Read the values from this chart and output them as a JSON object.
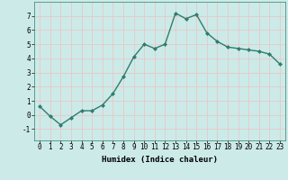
{
  "x": [
    0,
    1,
    2,
    3,
    4,
    5,
    6,
    7,
    8,
    9,
    10,
    11,
    12,
    13,
    14,
    15,
    16,
    17,
    18,
    19,
    20,
    21,
    22,
    23
  ],
  "y": [
    0.6,
    -0.1,
    -0.7,
    -0.2,
    0.3,
    0.3,
    0.7,
    1.5,
    2.7,
    4.1,
    5.0,
    4.7,
    5.0,
    7.2,
    6.8,
    7.1,
    5.8,
    5.2,
    4.8,
    4.7,
    4.6,
    4.5,
    4.3,
    3.6
  ],
  "line_color": "#2e7d6e",
  "marker": "D",
  "marker_size": 2.0,
  "bg_color": "#cceae8",
  "grid_color": "#e8c8c8",
  "xlabel": "Humidex (Indice chaleur)",
  "xlim": [
    -0.5,
    23.5
  ],
  "ylim": [
    -1.8,
    8.0
  ],
  "yticks": [
    -1,
    0,
    1,
    2,
    3,
    4,
    5,
    6,
    7
  ],
  "xticks": [
    0,
    1,
    2,
    3,
    4,
    5,
    6,
    7,
    8,
    9,
    10,
    11,
    12,
    13,
    14,
    15,
    16,
    17,
    18,
    19,
    20,
    21,
    22,
    23
  ],
  "tick_fontsize": 5.5,
  "xlabel_fontsize": 6.5,
  "linewidth": 1.0
}
